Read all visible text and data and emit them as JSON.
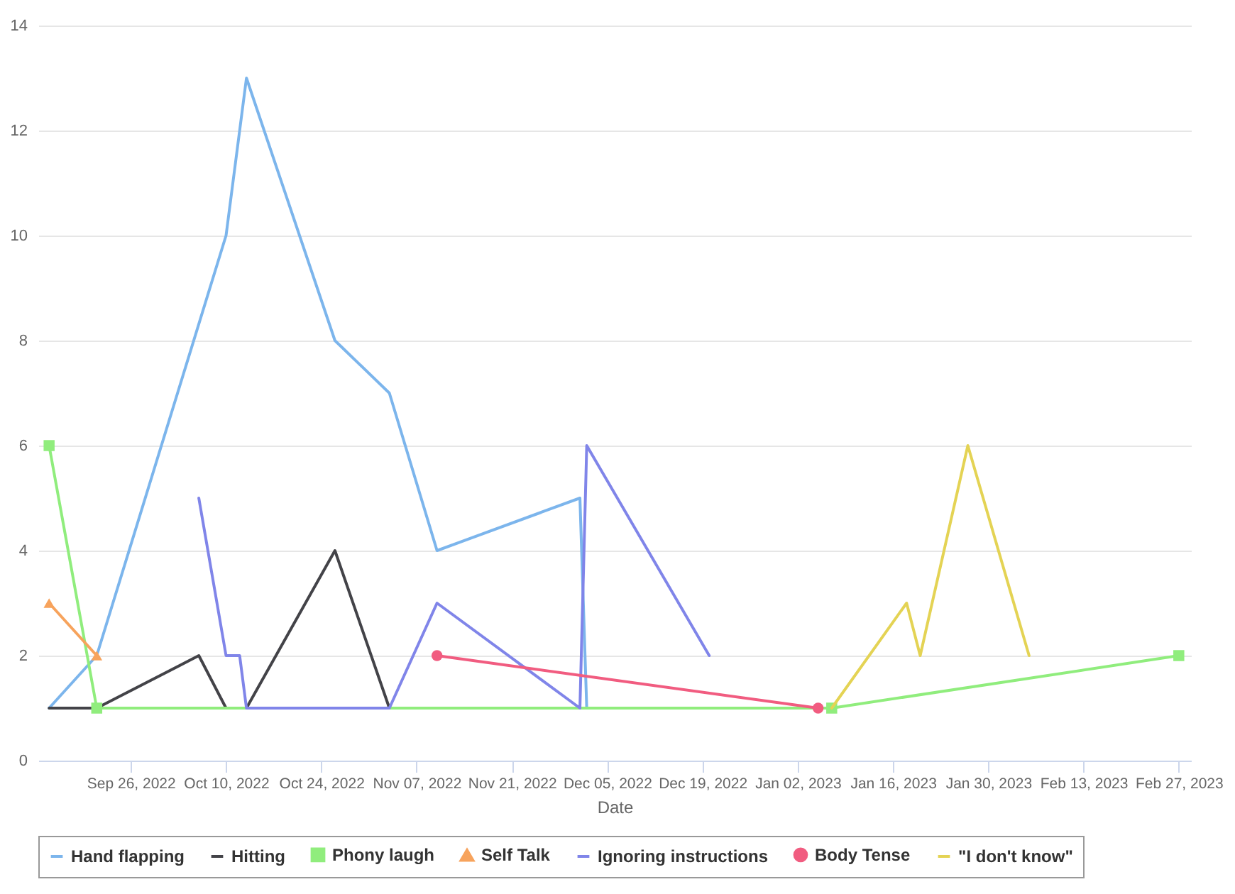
{
  "chart_data": {
    "type": "line",
    "xlabel": "Date",
    "xlim": [
      "2022-09-12T10:00",
      "2023-02-28T19:00"
    ],
    "xticks": [
      {
        "value": "2022-09-26",
        "label": "Sep 26, 2022"
      },
      {
        "value": "2022-10-10",
        "label": "Oct 10, 2022"
      },
      {
        "value": "2022-10-24",
        "label": "Oct 24, 2022"
      },
      {
        "value": "2022-11-07",
        "label": "Nov 07, 2022"
      },
      {
        "value": "2022-11-21",
        "label": "Nov 21, 2022"
      },
      {
        "value": "2022-12-05",
        "label": "Dec 05, 2022"
      },
      {
        "value": "2022-12-19",
        "label": "Dec 19, 2022"
      },
      {
        "value": "2023-01-02",
        "label": "Jan 02, 2023"
      },
      {
        "value": "2023-01-16",
        "label": "Jan 16, 2023"
      },
      {
        "value": "2023-01-30",
        "label": "Jan 30, 2023"
      },
      {
        "value": "2023-02-13",
        "label": "Feb 13, 2023"
      },
      {
        "value": "2023-02-27",
        "label": "Feb 27, 2023"
      }
    ],
    "ylim": [
      0,
      14
    ],
    "yticks": [
      0,
      2,
      4,
      6,
      8,
      10,
      12,
      14
    ],
    "grid": "y",
    "legend": "bottom",
    "series": [
      {
        "name": "Hand flapping",
        "color": "#7cb5ec",
        "marker": "none",
        "x": [
          "2022-09-14",
          "2022-09-21",
          "2022-10-10",
          "2022-10-13",
          "2022-10-26",
          "2022-11-03",
          "2022-11-10",
          "2022-12-01",
          "2022-12-02"
        ],
        "values": [
          1,
          2,
          10,
          13,
          8,
          7,
          4,
          5,
          1
        ]
      },
      {
        "name": "Hitting",
        "color": "#434348",
        "marker": "none",
        "x": [
          "2022-09-14",
          "2022-09-21",
          "2022-10-06",
          "2022-10-10",
          "2022-10-13",
          "2022-10-26",
          "2022-11-03"
        ],
        "values": [
          1,
          1,
          2,
          1,
          1,
          4,
          1
        ]
      },
      {
        "name": "Phony laugh",
        "color": "#90ed7d",
        "marker": "square",
        "x": [
          "2022-09-14",
          "2022-09-21",
          "2023-01-07",
          "2023-02-27"
        ],
        "values": [
          6,
          1,
          1,
          2
        ]
      },
      {
        "name": "Self Talk",
        "color": "#f7a35c",
        "marker": "triangle",
        "x": [
          "2022-09-14",
          "2022-09-21"
        ],
        "values": [
          3,
          2
        ]
      },
      {
        "name": "Ignoring instructions",
        "color": "#8085e9",
        "marker": "none",
        "x": [
          "2022-10-06",
          "2022-10-10",
          "2022-10-12",
          "2022-10-13",
          "2022-11-03",
          "2022-11-10",
          "2022-12-01",
          "2022-12-02",
          "2022-12-20"
        ],
        "values": [
          5,
          2,
          2,
          1,
          1,
          3,
          1,
          6,
          2
        ]
      },
      {
        "name": "Body Tense",
        "color": "#f15c80",
        "marker": "circle",
        "x": [
          "2022-11-10",
          "2023-01-05"
        ],
        "values": [
          2,
          1
        ]
      },
      {
        "name": "\"I don't know\"",
        "color": "#e4d354",
        "marker": "none",
        "x": [
          "2023-01-07",
          "2023-01-18",
          "2023-01-20",
          "2023-01-27",
          "2023-02-05"
        ],
        "values": [
          1,
          3,
          2,
          6,
          2
        ]
      }
    ]
  }
}
